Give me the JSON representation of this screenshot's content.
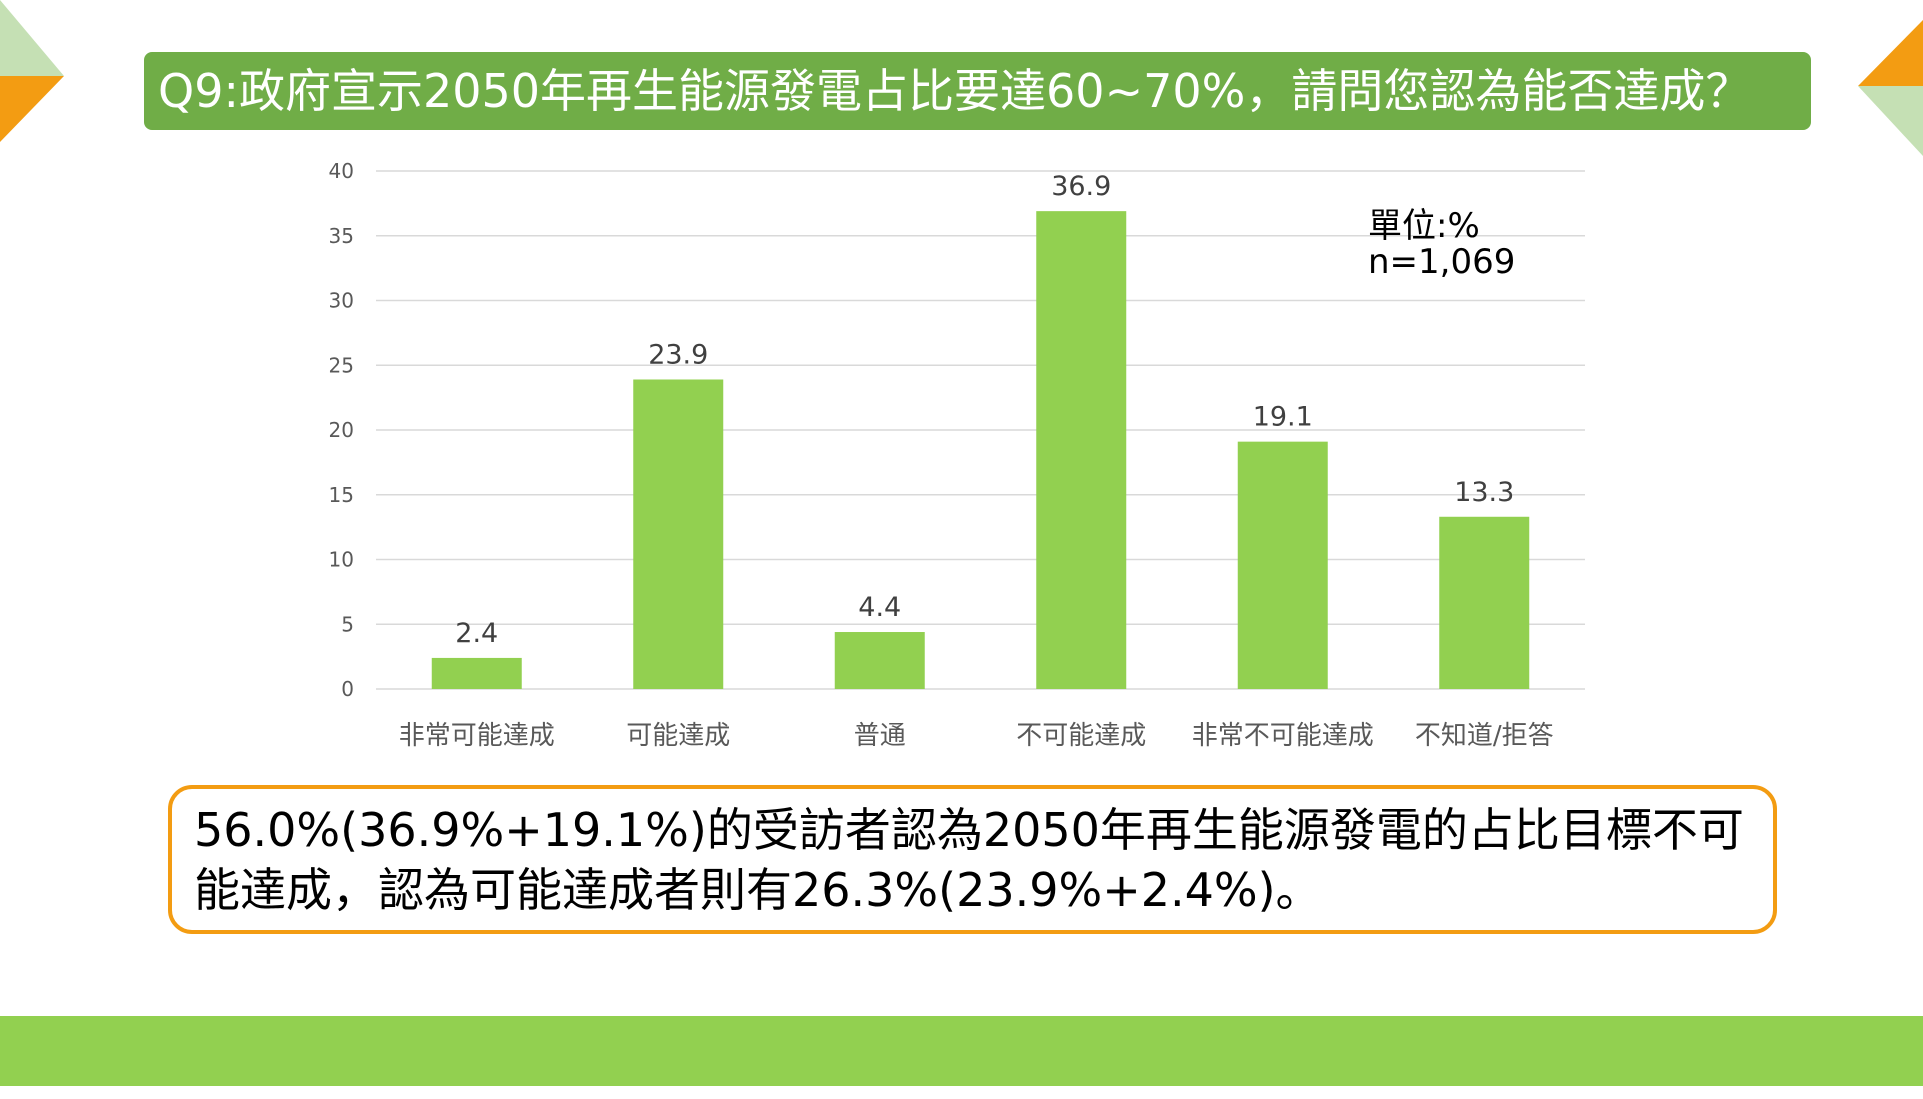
{
  "header": {
    "title": "Q9:政府宣示2050年再生能源發電占比要達60~70%，請問您認為能否達成？"
  },
  "chart_data": {
    "type": "bar",
    "categories": [
      "非常可能達成",
      "可能達成",
      "普通",
      "不可能達成",
      "非常不可能達成",
      "不知道/拒答"
    ],
    "values": [
      2.4,
      23.9,
      4.4,
      36.9,
      19.1,
      13.3
    ],
    "value_labels": [
      "2.4",
      "23.9",
      "4.4",
      "36.9",
      "19.1",
      "13.3"
    ],
    "y_ticks": [
      "0",
      "5",
      "10",
      "15",
      "20",
      "25",
      "30",
      "35",
      "40"
    ],
    "ylim": [
      0,
      40
    ],
    "grid": true,
    "bar_color": "#92d050",
    "unit": "單位:%",
    "sample": "n=1,069"
  },
  "summary": {
    "text": "56.0%(36.9%+19.1%)的受訪者認為2050年再生能源發電的占比目標不可能達成，認為可能達成者則有26.3%(23.9%+2.4%)。"
  },
  "colors": {
    "title_bg": "#70ad47",
    "accent_orange": "#f39c12",
    "band_green": "#92d050",
    "deco_light_green": "#c5e0b4"
  }
}
